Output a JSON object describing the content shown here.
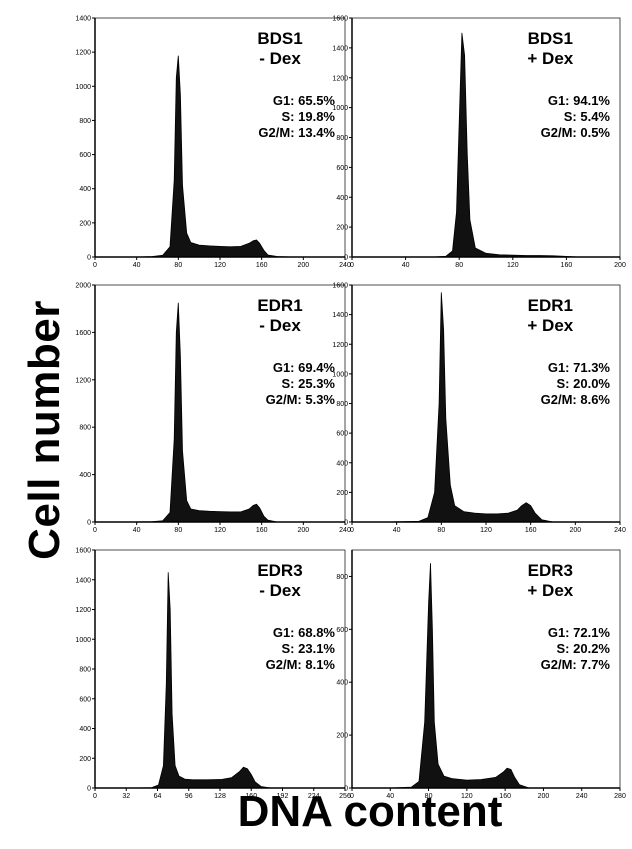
{
  "figure": {
    "ylabel": "Cell number",
    "xlabel": "DNA content"
  },
  "chart_data": [
    {
      "type": "area",
      "title_line1": "BDS1",
      "title_line2": "- Dex",
      "stats": [
        "G1:  65.5%",
        "S: 19.8%",
        "G2/M: 13.4%"
      ],
      "xlim": [
        0,
        240
      ],
      "ylim": [
        0,
        1400
      ],
      "x_ticks": [
        0,
        40,
        80,
        120,
        160,
        200,
        240
      ],
      "x_tick_labels": [
        "0",
        "40",
        "80",
        "120",
        "160",
        "200",
        "240"
      ],
      "y_ticks": [
        0,
        200,
        400,
        600,
        800,
        1000,
        1200,
        1400
      ],
      "y_tick_labels": [
        "0",
        "200",
        "400",
        "600",
        "800",
        "1000",
        "1200",
        "1400"
      ],
      "x": [
        0,
        20,
        40,
        55,
        65,
        72,
        76,
        78,
        80,
        82,
        84,
        88,
        92,
        100,
        110,
        120,
        130,
        140,
        148,
        152,
        155,
        158,
        162,
        166,
        175,
        190,
        240
      ],
      "y": [
        0,
        0,
        0,
        3,
        10,
        60,
        450,
        1050,
        1180,
        950,
        420,
        140,
        85,
        70,
        65,
        62,
        60,
        62,
        80,
        95,
        100,
        80,
        40,
        12,
        3,
        0,
        0
      ]
    },
    {
      "type": "area",
      "title_line1": "BDS1",
      "title_line2": "+ Dex",
      "stats": [
        "G1:  94.1%",
        "S: 5.4%",
        "G2/M: 0.5%"
      ],
      "xlim": [
        0,
        200
      ],
      "ylim": [
        0,
        1600
      ],
      "x_ticks": [
        0,
        40,
        80,
        120,
        160,
        200
      ],
      "x_tick_labels": [
        "0",
        "40",
        "80",
        "120",
        "160",
        "200"
      ],
      "y_ticks": [
        0,
        200,
        400,
        600,
        800,
        1000,
        1200,
        1400,
        1600
      ],
      "y_tick_labels": [
        "0",
        "200",
        "400",
        "600",
        "800",
        "1000",
        "1200",
        "1400",
        "1600"
      ],
      "x": [
        0,
        30,
        60,
        70,
        75,
        78,
        80,
        82,
        84,
        86,
        88,
        92,
        100,
        110,
        120,
        130,
        140,
        150,
        160,
        170,
        200
      ],
      "y": [
        0,
        0,
        0,
        5,
        40,
        300,
        900,
        1500,
        1350,
        700,
        250,
        60,
        25,
        15,
        12,
        10,
        10,
        8,
        4,
        0,
        0
      ]
    },
    {
      "type": "area",
      "title_line1": "EDR1",
      "title_line2": "- Dex",
      "stats": [
        "G1:  69.4%",
        "S: 25.3%",
        "G2/M: 5.3%"
      ],
      "xlim": [
        0,
        240
      ],
      "ylim": [
        0,
        2000
      ],
      "x_ticks": [
        0,
        40,
        80,
        120,
        160,
        200,
        240
      ],
      "x_tick_labels": [
        "0",
        "40",
        "80",
        "120",
        "160",
        "200",
        "240"
      ],
      "y_ticks": [
        0,
        400,
        800,
        1200,
        1600,
        2000
      ],
      "y_tick_labels": [
        "0",
        "400",
        "800",
        "1200",
        "1600",
        "2000"
      ],
      "x": [
        0,
        30,
        55,
        65,
        72,
        76,
        78,
        80,
        82,
        84,
        88,
        92,
        100,
        110,
        120,
        130,
        140,
        148,
        152,
        155,
        158,
        162,
        166,
        175,
        240
      ],
      "y": [
        0,
        0,
        3,
        10,
        80,
        700,
        1600,
        1850,
        1400,
        600,
        180,
        110,
        95,
        90,
        88,
        85,
        85,
        110,
        140,
        150,
        120,
        50,
        15,
        0,
        0
      ]
    },
    {
      "type": "area",
      "title_line1": "EDR1",
      "title_line2": "+ Dex",
      "stats": [
        "G1:  71.3%",
        "S: 20.0%",
        "G2/M: 8.6%"
      ],
      "xlim": [
        0,
        240
      ],
      "ylim": [
        0,
        1600
      ],
      "x_ticks": [
        0,
        40,
        80,
        120,
        160,
        200,
        240
      ],
      "x_tick_labels": [
        "0",
        "40",
        "80",
        "120",
        "160",
        "200",
        "240"
      ],
      "y_ticks": [
        0,
        200,
        400,
        600,
        800,
        1000,
        1200,
        1400,
        1600
      ],
      "y_tick_labels": [
        "0",
        "200",
        "400",
        "600",
        "800",
        "1000",
        "1200",
        "1400",
        "1600"
      ],
      "x": [
        0,
        30,
        60,
        68,
        74,
        78,
        80,
        82,
        84,
        88,
        92,
        100,
        110,
        120,
        130,
        140,
        148,
        152,
        156,
        160,
        164,
        170,
        180,
        240
      ],
      "y": [
        0,
        0,
        5,
        30,
        200,
        800,
        1550,
        1300,
        700,
        250,
        110,
        70,
        60,
        55,
        55,
        60,
        80,
        110,
        130,
        110,
        60,
        15,
        0,
        0
      ]
    },
    {
      "type": "area",
      "title_line1": "EDR3",
      "title_line2": "- Dex",
      "stats": [
        "G1:  68.8%",
        "S: 23.1%",
        "G2/M: 8.1%"
      ],
      "xlim": [
        0,
        256
      ],
      "ylim": [
        0,
        1600
      ],
      "x_ticks": [
        0,
        32,
        64,
        96,
        128,
        160,
        192,
        224,
        256
      ],
      "x_tick_labels": [
        "0",
        "32",
        "64",
        "96",
        "128",
        "160",
        "192",
        "224",
        "256"
      ],
      "y_ticks": [
        0,
        200,
        400,
        600,
        800,
        1000,
        1200,
        1400,
        1600
      ],
      "y_tick_labels": [
        "0",
        "200",
        "400",
        "600",
        "800",
        "1000",
        "1200",
        "1400",
        "1600"
      ],
      "x": [
        0,
        40,
        58,
        65,
        70,
        73,
        75,
        77,
        79,
        82,
        86,
        92,
        100,
        115,
        130,
        140,
        148,
        152,
        156,
        160,
        164,
        170,
        180,
        256
      ],
      "y": [
        0,
        0,
        3,
        20,
        150,
        700,
        1450,
        1200,
        500,
        150,
        80,
        60,
        55,
        55,
        58,
        70,
        110,
        140,
        130,
        90,
        40,
        10,
        0,
        0
      ]
    },
    {
      "type": "area",
      "title_line1": "EDR3",
      "title_line2": "+ Dex",
      "stats": [
        "G1:  72.1%",
        "S: 20.2%",
        "G2/M: 7.7%"
      ],
      "xlim": [
        0,
        280
      ],
      "ylim": [
        0,
        900
      ],
      "x_ticks": [
        0,
        40,
        80,
        120,
        160,
        200,
        240,
        280
      ],
      "x_tick_labels": [
        "0",
        "40",
        "80",
        "120",
        "160",
        "200",
        "240",
        "280"
      ],
      "y_ticks": [
        0,
        200,
        400,
        600,
        800
      ],
      "y_tick_labels": [
        "0",
        "200",
        "400",
        "600",
        "800"
      ],
      "x": [
        0,
        40,
        62,
        70,
        76,
        80,
        82,
        84,
        86,
        90,
        96,
        105,
        120,
        135,
        150,
        158,
        162,
        166,
        170,
        175,
        185,
        280
      ],
      "y": [
        0,
        0,
        3,
        25,
        250,
        700,
        850,
        600,
        250,
        90,
        45,
        35,
        30,
        32,
        40,
        60,
        75,
        70,
        40,
        12,
        0,
        0
      ]
    }
  ]
}
